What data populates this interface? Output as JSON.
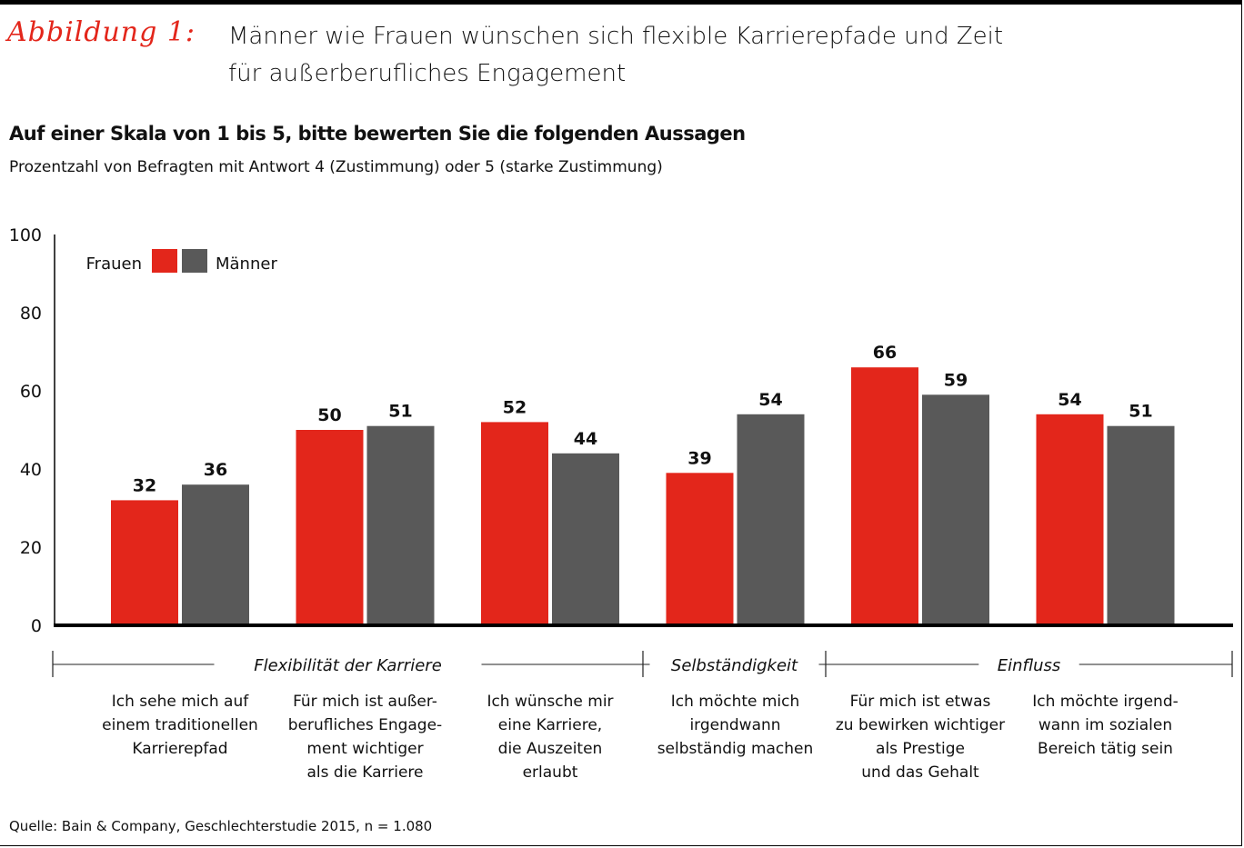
{
  "figure_label": "Abbildung 1:",
  "title_lines": [
    "Männer wie Frauen wünschen sich flexible Karrierepfade und Zeit",
    "für außerberufliches Engagement"
  ],
  "source": "Quelle: Bain & Company, Geschlechterstudie 2015, n = 1.080",
  "chart_data": {
    "type": "bar",
    "title": "Auf einer Skala von 1 bis 5, bitte bewerten Sie die folgenden Aussagen",
    "subtitle": "Prozentzahl von Befragten mit Antwort 4 (Zustimmung) oder 5 (starke Zustimmung)",
    "ylim": [
      0,
      100
    ],
    "yticks": [
      "0",
      "20",
      "40",
      "60",
      "80",
      "100"
    ],
    "legend_placement": "top-left",
    "categories": [
      [
        "Ich sehe mich auf",
        "einem traditionellen",
        "Karrierepfad"
      ],
      [
        "Für mich ist außer-",
        "berufliches Engage-",
        "ment wichtiger",
        "als die Karriere"
      ],
      [
        "Ich wünsche mir",
        "eine Karriere,",
        "die Auszeiten",
        "erlaubt"
      ],
      [
        "Ich möchte mich",
        "irgendwann",
        "selbständig machen"
      ],
      [
        "Für mich ist etwas",
        "zu bewirken wichtiger",
        "als Prestige",
        "und das Gehalt"
      ],
      [
        "Ich möchte irgend-",
        "wann im sozialen",
        "Bereich tätig sein"
      ]
    ],
    "groups": [
      {
        "label": "Flexibilität der Karriere",
        "from": 0,
        "to": 2
      },
      {
        "label": "Selbständigkeit",
        "from": 3,
        "to": 3
      },
      {
        "label": "Einfluss",
        "from": 4,
        "to": 5
      }
    ],
    "series": [
      {
        "name": "Frauen",
        "color": "#e3261b",
        "values": [
          32,
          50,
          52,
          39,
          66,
          54
        ]
      },
      {
        "name": "Männer",
        "color": "#595959",
        "values": [
          36,
          51,
          44,
          54,
          59,
          51
        ]
      }
    ]
  }
}
